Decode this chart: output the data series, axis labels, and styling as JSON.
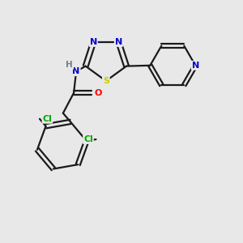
{
  "bg_color": "#e8e8e8",
  "bond_color": "#1a1a1a",
  "bond_width": 1.6,
  "atom_colors": {
    "N": "#0000cc",
    "S": "#cccc00",
    "O": "#ff0000",
    "Cl": "#00aa00",
    "C": "#1a1a1a",
    "H": "#708090"
  },
  "figsize": [
    3.0,
    3.0
  ],
  "dpi": 100
}
